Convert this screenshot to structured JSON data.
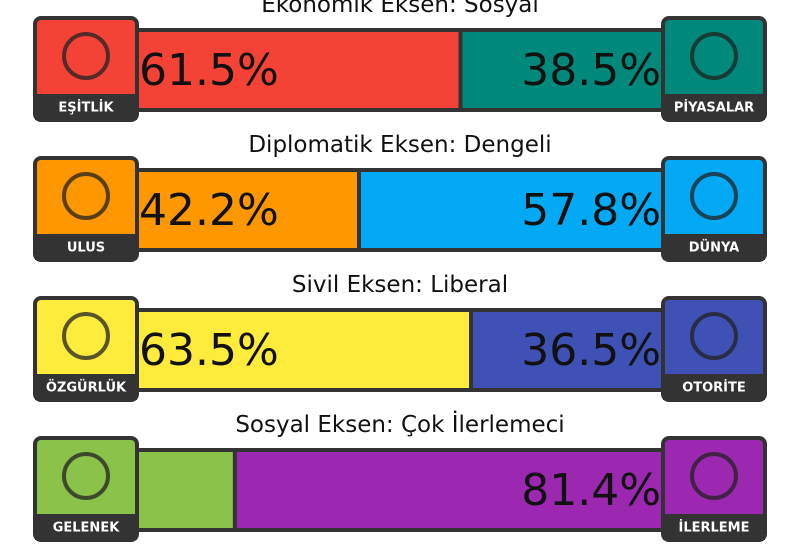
{
  "axes": [
    {
      "title": "Ekonomik Eksen: Sosyal",
      "left": {
        "label": "EŞİTLİK",
        "value": 61.5,
        "value_label": "61.5%",
        "color": "#f44336"
      },
      "right": {
        "label": "PİYASALAR",
        "value": 38.5,
        "value_label": "38.5%",
        "color": "#00897b"
      }
    },
    {
      "title": "Diplomatik Eksen: Dengeli",
      "left": {
        "label": "ULUS",
        "value": 42.2,
        "value_label": "42.2%",
        "color": "#ff9800"
      },
      "right": {
        "label": "DÜNYA",
        "value": 57.8,
        "value_label": "57.8%",
        "color": "#03a9f4"
      }
    },
    {
      "title": "Sivil Eksen: Liberal",
      "left": {
        "label": "ÖZGÜRLÜK",
        "value": 63.5,
        "value_label": "63.5%",
        "color": "#ffeb3b"
      },
      "right": {
        "label": "OTORİTE",
        "value": 36.5,
        "value_label": "36.5%",
        "color": "#3f51b5"
      }
    },
    {
      "title": "Sosyal Eksen: Çok İlerlemeci",
      "left": {
        "label": "GELENEK",
        "value": 18.6,
        "color": "#8bc34a"
      },
      "right": {
        "label": "İLERLEME",
        "value": 81.4,
        "value_label": "81.4%",
        "color": "#9c27b0"
      }
    }
  ]
}
